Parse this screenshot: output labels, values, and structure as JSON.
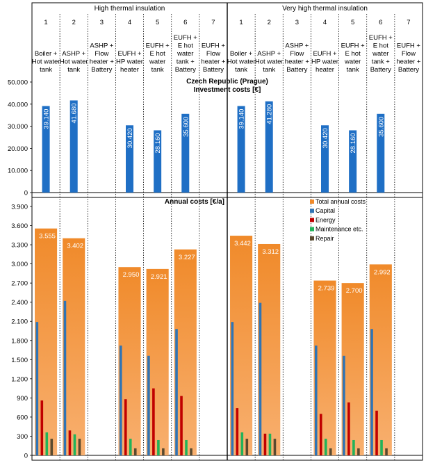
{
  "groups": [
    "High thermal insulation",
    "Very high thermal insulation"
  ],
  "columns": [
    {
      "num": "1",
      "lines": [
        "Boiler +",
        "Hot water",
        "tank"
      ]
    },
    {
      "num": "2",
      "lines": [
        "ASHP +",
        "Hot water",
        "tank"
      ]
    },
    {
      "num": "3",
      "lines": [
        "ASHP +",
        "Flow",
        "heater +",
        "Battery"
      ]
    },
    {
      "num": "4",
      "lines": [
        "EUFH +",
        "HP water",
        "heater"
      ]
    },
    {
      "num": "5",
      "lines": [
        "EUFH +",
        "E hot",
        "water",
        "tank"
      ]
    },
    {
      "num": "6",
      "lines": [
        "EUFH +",
        "E hot",
        "water",
        "tank +",
        "Battery"
      ]
    },
    {
      "num": "7",
      "lines": [
        "EUFH +",
        "Flow",
        "heater +",
        "Battery"
      ]
    }
  ],
  "chart_data": [
    {
      "type": "bar",
      "title": "Czech Republic (Prague)",
      "subtitle": "Investment costs [€]",
      "ylim": [
        0,
        50000
      ],
      "yticks": [
        0,
        10000,
        20000,
        30000,
        40000,
        50000
      ],
      "ytick_labels": [
        "0",
        "10.000",
        "20.000",
        "30.000",
        "40.000",
        "50.000"
      ],
      "color": "#1f6fc5",
      "values": [
        39140,
        41680,
        null,
        30420,
        28160,
        35600,
        null,
        39140,
        41280,
        null,
        30420,
        28160,
        35600,
        null
      ],
      "labels": [
        "39.140",
        "41.680",
        "",
        "30.420",
        "28.160",
        "35.600",
        "",
        "39.140",
        "41.280",
        "",
        "30.420",
        "28.160",
        "35.600",
        ""
      ]
    },
    {
      "type": "bar",
      "title": "Annual costs [€/a]",
      "ylim": [
        0,
        3900
      ],
      "yticks": [
        0,
        300,
        600,
        900,
        1200,
        1500,
        1800,
        2100,
        2400,
        2700,
        3000,
        3300,
        3600,
        3900
      ],
      "ytick_labels": [
        "0",
        "300",
        "600",
        "900",
        "1.200",
        "1.500",
        "1.800",
        "2.100",
        "2.400",
        "2.700",
        "3.000",
        "3.300",
        "3.600",
        "3.900"
      ],
      "legend": [
        "Total annual costs",
        "Capital",
        "Energy",
        "Maintenance etc.",
        "Repair"
      ],
      "colors": {
        "total": "#f08a2a",
        "total_light": "#f8b070",
        "capital": "#2f74b5",
        "energy": "#c00000",
        "maintenance": "#21b35a",
        "repair": "#5a4a2e"
      },
      "total": [
        3555,
        3402,
        null,
        2950,
        2921,
        3227,
        null,
        3442,
        3312,
        null,
        2739,
        2700,
        2992,
        null
      ],
      "total_labels": [
        "3.555",
        "3.402",
        "",
        "2.950",
        "2.921",
        "3.227",
        "",
        "3.442",
        "3.312",
        "",
        "2.739",
        "2.700",
        "2.992",
        ""
      ],
      "capital": [
        2090,
        2420,
        null,
        1720,
        1560,
        1980,
        null,
        2090,
        2390,
        null,
        1720,
        1560,
        1980,
        null
      ],
      "energy": [
        860,
        390,
        null,
        880,
        1050,
        930,
        null,
        740,
        340,
        null,
        650,
        830,
        700,
        null
      ],
      "maintenance": [
        360,
        330,
        null,
        260,
        240,
        240,
        null,
        360,
        340,
        null,
        260,
        240,
        240,
        null
      ],
      "repair": [
        260,
        260,
        null,
        110,
        110,
        110,
        null,
        260,
        260,
        null,
        110,
        110,
        110,
        null
      ]
    }
  ]
}
